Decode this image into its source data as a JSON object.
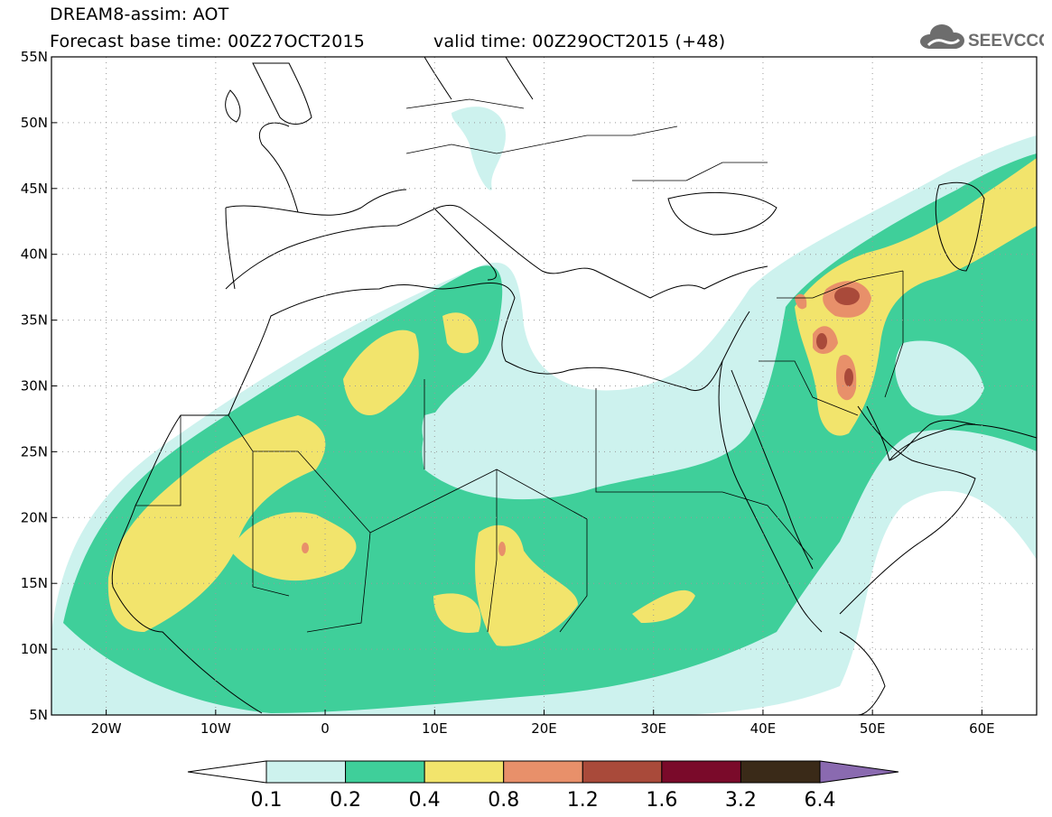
{
  "header": {
    "line1": "DREAM8-assim: AOT",
    "line2": "Forecast base time: 00Z27OCT2015",
    "valid": "valid time: 00Z29OCT2015 (+48)"
  },
  "logo": {
    "text": "SEEVCCC",
    "icon": "cloud-icon"
  },
  "map": {
    "lon_range": [
      -25,
      65
    ],
    "lat_range": [
      5,
      55
    ],
    "lon_ticks": [
      {
        "value": -20,
        "label": "20W"
      },
      {
        "value": -10,
        "label": "10W"
      },
      {
        "value": 0,
        "label": "0"
      },
      {
        "value": 10,
        "label": "10E"
      },
      {
        "value": 20,
        "label": "20E"
      },
      {
        "value": 30,
        "label": "30E"
      },
      {
        "value": 40,
        "label": "40E"
      },
      {
        "value": 50,
        "label": "50E"
      },
      {
        "value": 60,
        "label": "60E"
      }
    ],
    "lat_ticks": [
      {
        "value": 5,
        "label": "5N"
      },
      {
        "value": 10,
        "label": "10N"
      },
      {
        "value": 15,
        "label": "15N"
      },
      {
        "value": 20,
        "label": "20N"
      },
      {
        "value": 25,
        "label": "25N"
      },
      {
        "value": 30,
        "label": "30N"
      },
      {
        "value": 35,
        "label": "35N"
      },
      {
        "value": 40,
        "label": "40N"
      },
      {
        "value": 45,
        "label": "45N"
      },
      {
        "value": 50,
        "label": "50N"
      },
      {
        "value": 55,
        "label": "55N"
      }
    ],
    "grid": "dotted"
  },
  "colorbar": {
    "boundaries": [
      "0.1",
      "0.2",
      "0.4",
      "0.8",
      "1.2",
      "1.6",
      "3.2",
      "6.4"
    ],
    "colors": [
      "#cdf2ee",
      "#3fcf9a",
      "#f2e46c",
      "#e8906a",
      "#a94a3a",
      "#7a0a2a",
      "#3a2a18"
    ],
    "under_color": "#ffffff",
    "over_color": "#8a6ab0"
  }
}
